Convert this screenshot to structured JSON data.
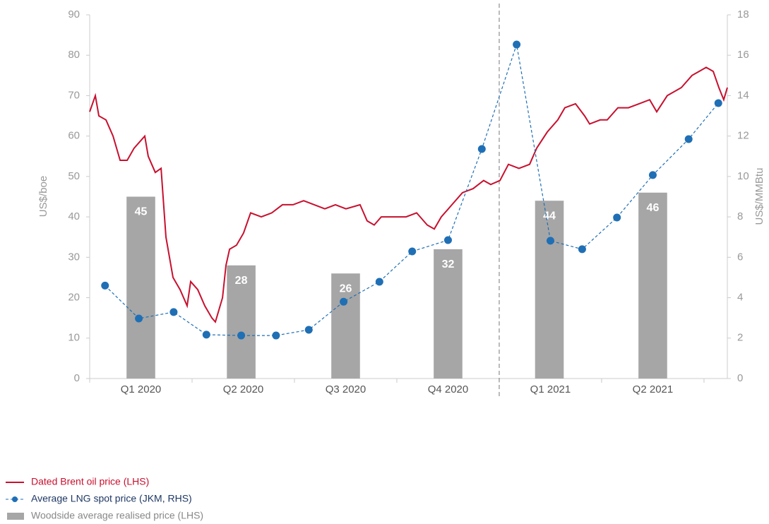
{
  "chart_data": {
    "type": "combo",
    "ylabel": "US$/boe",
    "y2label": "US$/MMBtu",
    "ylim": [
      0,
      90
    ],
    "yticks": [
      0,
      10,
      20,
      30,
      40,
      50,
      60,
      70,
      80,
      90
    ],
    "y2lim": [
      0,
      18
    ],
    "y2ticks": [
      0,
      2,
      4,
      6,
      8,
      10,
      12,
      14,
      16,
      18
    ],
    "xlim": [
      0,
      6.228
    ],
    "xticks": [
      {
        "value": 0.5,
        "label": "Q1 2020"
      },
      {
        "value": 1.5,
        "label": "Q2 2020"
      },
      {
        "value": 2.5,
        "label": "Q3 2020"
      },
      {
        "value": 3.5,
        "label": "Q4 2020"
      },
      {
        "value": 4.5,
        "label": "Q1 2021"
      },
      {
        "value": 5.5,
        "label": "Q2 2021"
      }
    ],
    "divider": 4,
    "series": [
      {
        "name": "Dated Brent oil price (LHS)",
        "type": "line",
        "color": "#c8102e",
        "x": [
          0,
          0.055,
          0.09,
          0.159,
          0.228,
          0.297,
          0.366,
          0.434,
          0.538,
          0.572,
          0.641,
          0.697,
          0.745,
          0.814,
          0.883,
          0.952,
          0.986,
          1.055,
          1.124,
          1.193,
          1.228,
          1.297,
          1.331,
          1.366,
          1.434,
          1.503,
          1.572,
          1.676,
          1.779,
          1.883,
          1.986,
          2.09,
          2.193,
          2.297,
          2.4,
          2.503,
          2.641,
          2.71,
          2.779,
          2.848,
          2.986,
          3.09,
          3.193,
          3.297,
          3.366,
          3.434,
          3.538,
          3.641,
          3.745,
          3.848,
          3.917,
          4.007,
          4.09,
          4.193,
          4.297,
          4.366,
          4.469,
          4.572,
          4.641,
          4.745,
          4.834,
          4.883,
          4.986,
          5.055,
          5.159,
          5.262,
          5.366,
          5.469,
          5.538,
          5.641,
          5.779,
          5.883,
          5.952,
          6.021,
          6.09,
          6.145,
          6.193,
          6.228
        ],
        "values": [
          66,
          70,
          65,
          64,
          60,
          54,
          54,
          57,
          60,
          55,
          51,
          52,
          35,
          25,
          22,
          18,
          24,
          22,
          18,
          15,
          14,
          20,
          28,
          32,
          33,
          36,
          41,
          40,
          41,
          43,
          43,
          44,
          43,
          42,
          43,
          42,
          43,
          39,
          38,
          40,
          40,
          40,
          41,
          38,
          37,
          40,
          43,
          46,
          47,
          49,
          48,
          49,
          53,
          52,
          53,
          57,
          61,
          64,
          67,
          68,
          65,
          63,
          64,
          64,
          67,
          67,
          68,
          69,
          66,
          70,
          72,
          75,
          76,
          77,
          76,
          72,
          69,
          72
        ]
      },
      {
        "name": "Average LNG spot price (JKM, RHS)",
        "type": "dotted-line",
        "axis": "y2",
        "color": "#1f6fb5",
        "x": [
          0.15,
          0.48,
          0.82,
          1.14,
          1.48,
          1.82,
          2.14,
          2.48,
          2.83,
          3.15,
          3.5,
          3.83,
          4.17,
          4.5,
          4.81,
          5.15,
          5.5,
          5.85,
          6.14
        ],
        "values": [
          4.6,
          2.97,
          3.29,
          2.17,
          2.13,
          2.13,
          2.41,
          3.8,
          4.79,
          6.29,
          6.85,
          11.36,
          16.53,
          6.82,
          6.4,
          7.97,
          10.07,
          11.85,
          13.63
        ]
      },
      {
        "name": "Woodside average realised price (LHS)",
        "type": "bar",
        "color": "#a6a6a6",
        "x": [
          0.5,
          1.48,
          2.5,
          3.5,
          4.49,
          5.5
        ],
        "values": [
          45,
          28,
          26,
          32,
          44,
          46
        ]
      }
    ]
  }
}
